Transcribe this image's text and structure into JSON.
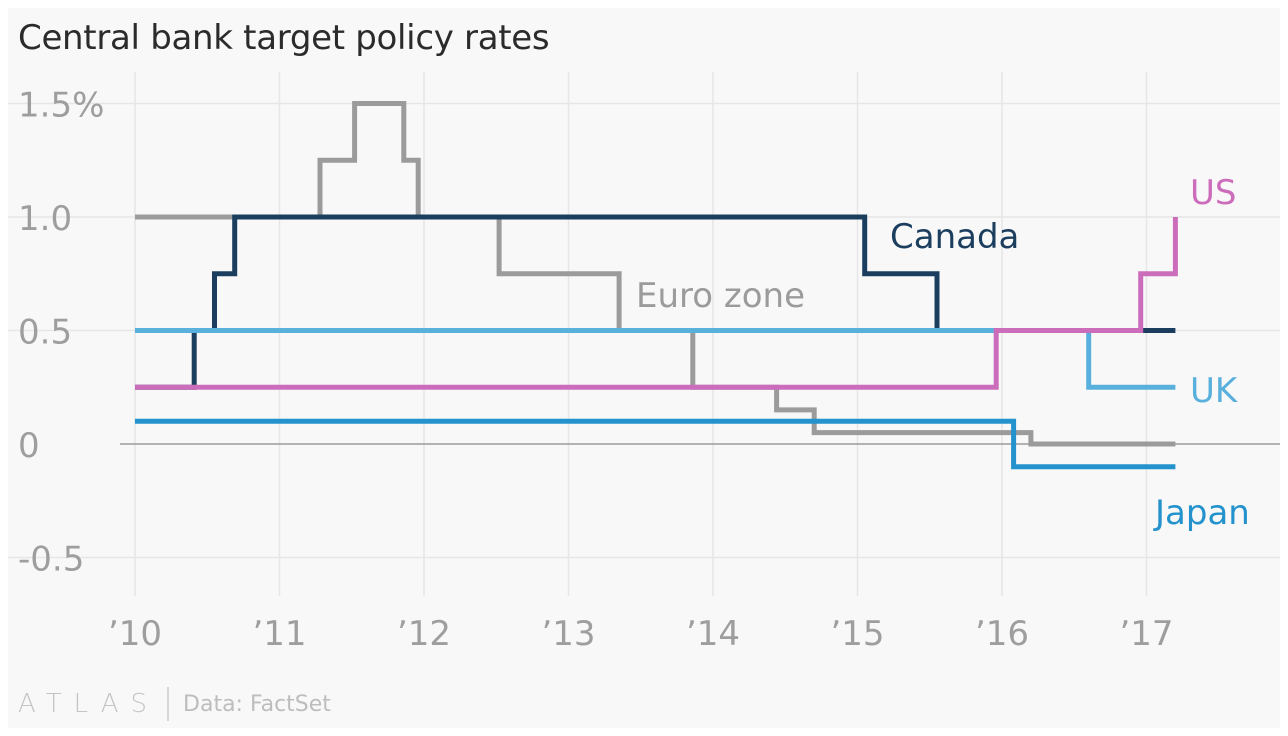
{
  "title": "Central bank target policy rates",
  "footer": {
    "logo": "ATLAS",
    "source": "Data: FactSet"
  },
  "colors": {
    "canada": "#1b3e5e",
    "euro": "#9b9b9b",
    "uk": "#59b0dc",
    "us": "#cc6dbc",
    "japan": "#2392cd"
  },
  "chart_data": {
    "type": "line",
    "title": "Central bank target policy rates",
    "step": true,
    "x_range": [
      2010.0,
      2017.85
    ],
    "ylim": [
      -0.65,
      1.65
    ],
    "y_ticks": [
      {
        "value": 1.5,
        "label": "1.5%"
      },
      {
        "value": 1.0,
        "label": "1.0"
      },
      {
        "value": 0.5,
        "label": "0.5"
      },
      {
        "value": 0,
        "label": "0"
      },
      {
        "value": -0.5,
        "label": "-0.5"
      }
    ],
    "x_ticks": [
      {
        "value": 2010,
        "label": "’10"
      },
      {
        "value": 2011,
        "label": "’11"
      },
      {
        "value": 2012,
        "label": "’12"
      },
      {
        "value": 2013,
        "label": "’13"
      },
      {
        "value": 2014,
        "label": "’14"
      },
      {
        "value": 2015,
        "label": "’15"
      },
      {
        "value": 2016,
        "label": "’16"
      },
      {
        "value": 2017,
        "label": "’17"
      }
    ],
    "series": [
      {
        "key": "euro",
        "name": "Euro zone",
        "points": [
          [
            2010.0,
            1.0
          ],
          [
            2011.28,
            1.25
          ],
          [
            2011.52,
            1.5
          ],
          [
            2011.86,
            1.25
          ],
          [
            2011.96,
            1.0
          ],
          [
            2012.52,
            0.75
          ],
          [
            2013.35,
            0.5
          ],
          [
            2013.86,
            0.25
          ],
          [
            2014.44,
            0.15
          ],
          [
            2014.7,
            0.05
          ],
          [
            2016.2,
            0.0
          ],
          [
            2017.2,
            0.0
          ]
        ]
      },
      {
        "key": "canada",
        "name": "Canada",
        "points": [
          [
            2010.0,
            0.25
          ],
          [
            2010.41,
            0.5
          ],
          [
            2010.55,
            0.75
          ],
          [
            2010.69,
            1.0
          ],
          [
            2015.05,
            0.75
          ],
          [
            2015.55,
            0.5
          ],
          [
            2017.2,
            0.5
          ]
        ]
      },
      {
        "key": "uk",
        "name": "UK",
        "points": [
          [
            2010.0,
            0.5
          ],
          [
            2016.6,
            0.25
          ],
          [
            2017.2,
            0.25
          ]
        ]
      },
      {
        "key": "us",
        "name": "US",
        "points": [
          [
            2010.0,
            0.25
          ],
          [
            2015.96,
            0.5
          ],
          [
            2016.96,
            0.75
          ],
          [
            2017.2,
            1.0
          ]
        ]
      },
      {
        "key": "japan",
        "name": "Japan",
        "points": [
          [
            2010.0,
            0.1
          ],
          [
            2016.08,
            -0.1
          ],
          [
            2017.2,
            -0.1
          ]
        ]
      }
    ]
  }
}
